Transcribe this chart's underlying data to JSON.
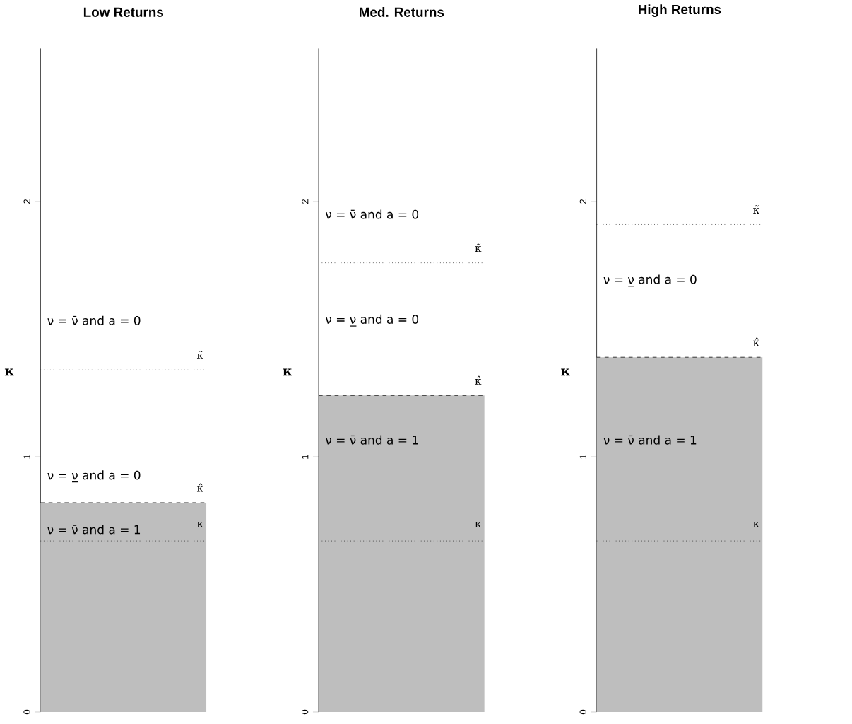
{
  "chart_data": [
    {
      "type": "bar",
      "title": "Low Returns",
      "ylabel": "κ",
      "categories": [
        null
      ],
      "values": [
        0.82
      ],
      "color": "#bebebe",
      "ylim": [
        0,
        2.6
      ],
      "yticks": [
        0,
        1,
        2
      ],
      "tick_labels": "y",
      "ref_lines": [
        {
          "axis": "y",
          "value": 0.67,
          "label": "κ̲",
          "line_style": "dotted",
          "color": "#000000"
        },
        {
          "axis": "y",
          "value": 0.82,
          "label": "κ̂",
          "line_style": "dashed",
          "color": "#000000"
        },
        {
          "axis": "y",
          "value": 1.34,
          "label": "κ̃",
          "line_style": "dotted",
          "color": "#000000"
        }
      ],
      "annotations": [
        "ν = ν̄ and a = 0",
        "ν = ν̲ and a = 0",
        "ν = ν̄ and a = 1"
      ]
    },
    {
      "type": "bar",
      "title": "Med. Returns",
      "ylabel": "κ",
      "categories": [
        null
      ],
      "values": [
        1.24
      ],
      "color": "#bebebe",
      "ylim": [
        0,
        2.6
      ],
      "yticks": [
        0,
        1,
        2
      ],
      "tick_labels": "y",
      "ref_lines": [
        {
          "axis": "y",
          "value": 0.67,
          "label": "κ̲",
          "line_style": "dotted",
          "color": "#000000"
        },
        {
          "axis": "y",
          "value": 1.24,
          "label": "κ̂",
          "line_style": "dashed",
          "color": "#000000"
        },
        {
          "axis": "y",
          "value": 1.76,
          "label": "κ̃",
          "line_style": "dotted",
          "color": "#000000"
        }
      ],
      "annotations": [
        "ν = ν̄ and a = 0",
        "ν = ν̲ and a = 0",
        "ν = ν̄ and a = 1"
      ]
    },
    {
      "type": "bar",
      "title": "High Returns",
      "ylabel": "κ",
      "categories": [
        null
      ],
      "values": [
        1.39
      ],
      "color": "#bebebe",
      "ylim": [
        0,
        2.6
      ],
      "yticks": [
        0,
        1,
        2
      ],
      "tick_labels": "y",
      "ref_lines": [
        {
          "axis": "y",
          "value": 0.67,
          "label": "κ̲",
          "line_style": "dotted",
          "color": "#000000"
        },
        {
          "axis": "y",
          "value": 1.39,
          "label": "κ̂",
          "line_style": "dashed",
          "color": "#000000"
        },
        {
          "axis": "y",
          "value": 1.91,
          "label": "κ̃",
          "line_style": "dotted",
          "color": "#000000"
        }
      ],
      "annotations": [
        "ν = ν̲ and a = 0",
        "ν = ν̄ and a = 1"
      ]
    }
  ]
}
